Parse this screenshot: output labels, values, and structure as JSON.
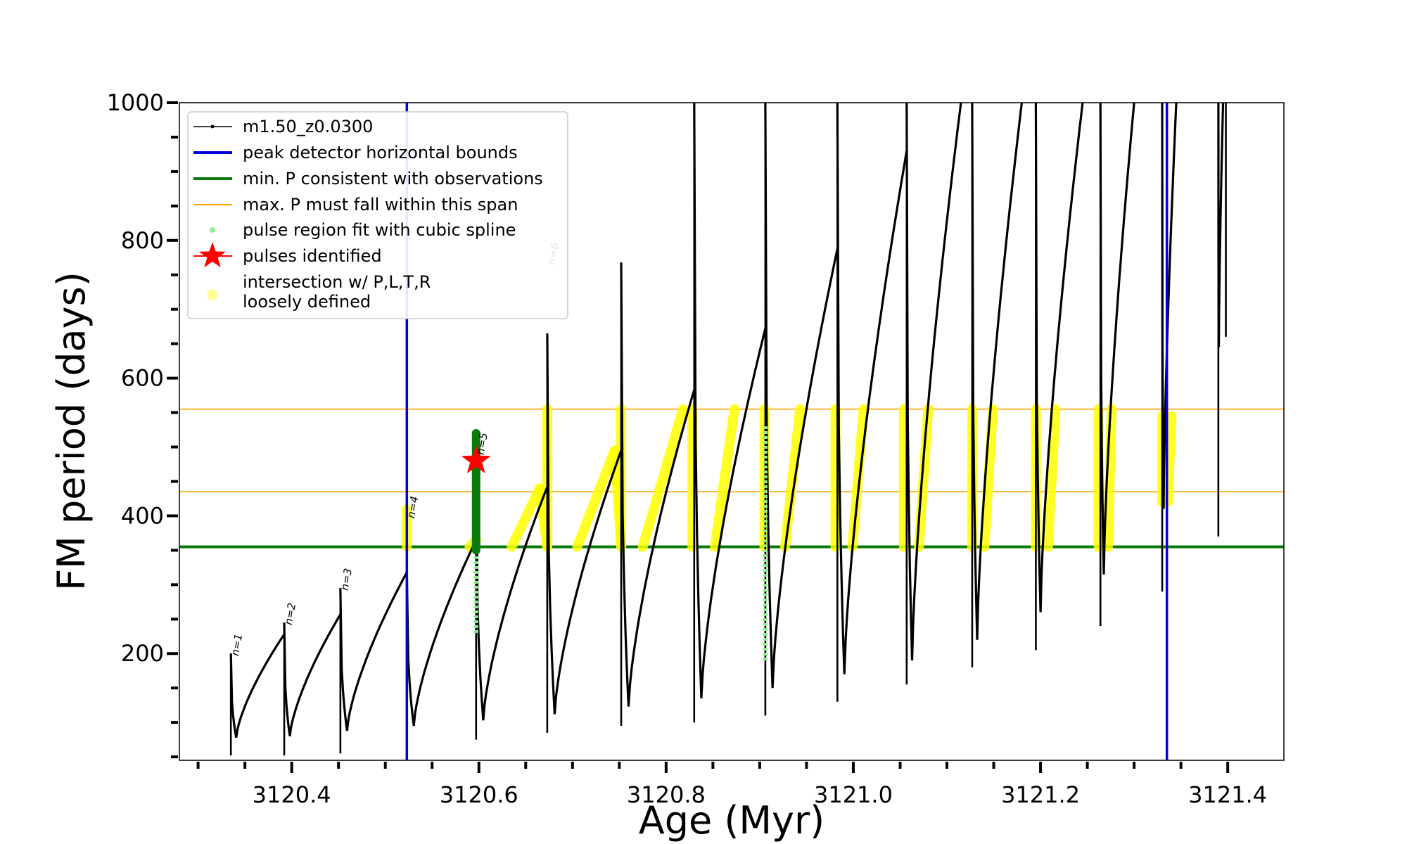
{
  "chart_data": {
    "type": "line",
    "xlabel": "Age (Myr)",
    "ylabel": "FM period (days)",
    "xlim": [
      3120.28,
      3121.46
    ],
    "ylim": [
      45,
      1000
    ],
    "x_ticks": [
      {
        "value": 3120.4,
        "label": "3120.4"
      },
      {
        "value": 3120.6,
        "label": "3120.6"
      },
      {
        "value": 3120.8,
        "label": "3120.8"
      },
      {
        "value": 3121.0,
        "label": "3121.0"
      },
      {
        "value": 3121.2,
        "label": "3121.2"
      },
      {
        "value": 3121.4,
        "label": "3121.4"
      }
    ],
    "y_ticks": [
      {
        "value": 200,
        "label": "200"
      },
      {
        "value": 400,
        "label": "400"
      },
      {
        "value": 600,
        "label": "600"
      },
      {
        "value": 800,
        "label": "800"
      },
      {
        "value": 1000,
        "label": "1000"
      }
    ],
    "grid": false,
    "legend_position": "top-left",
    "legend": [
      {
        "label": "m1.50_z0.0300",
        "marker": "line-dot",
        "color": "#000000"
      },
      {
        "label": "peak detector horizontal bounds",
        "marker": "line",
        "color": "#0000dd"
      },
      {
        "label": "min. P consistent with observations",
        "marker": "line",
        "color": "#0a7a0a"
      },
      {
        "label": "max. P must fall within this span",
        "marker": "line",
        "color": "#ffa500"
      },
      {
        "label": "pulse region fit with cubic spline",
        "marker": "dot",
        "color": "#90ee90"
      },
      {
        "label": "pulses identified",
        "marker": "star",
        "color": "#ff0000"
      },
      {
        "label": "intersection w/ P,L,T,R",
        "label2": "loosely defined",
        "marker": "dot",
        "color": "#ffff99"
      }
    ],
    "series": [
      {
        "name": "m1.50_z0.0300",
        "color": "#000000",
        "pulses": [
          {
            "t0": 3120.335,
            "spike": 200,
            "dip": 78,
            "t_end": 3120.392,
            "peak": 228
          },
          {
            "t0": 3120.392,
            "spike": 245,
            "dip": 80,
            "t_end": 3120.452,
            "peak": 257
          },
          {
            "t0": 3120.452,
            "spike": 295,
            "dip": 88,
            "t_end": 3120.523,
            "peak": 318
          },
          {
            "t0": 3120.523,
            "spike": 320,
            "dip": 95,
            "t_end": 3120.597,
            "peak": 365
          },
          {
            "t0": 3120.597,
            "spike": 490,
            "dip": 103,
            "t_end": 3120.673,
            "peak": 442
          },
          {
            "t0": 3120.673,
            "spike": 665,
            "dip": 112,
            "t_end": 3120.752,
            "peak": 495
          },
          {
            "t0": 3120.752,
            "spike": 768,
            "dip": 123,
            "t_end": 3120.83,
            "peak": 583
          },
          {
            "t0": 3120.83,
            "spike": 1000,
            "dip": 135,
            "t_end": 3120.906,
            "peak": 672
          },
          {
            "t0": 3120.906,
            "spike": 1000,
            "dip": 150,
            "t_end": 3120.983,
            "peak": 788
          },
          {
            "t0": 3120.983,
            "spike": 1000,
            "dip": 170,
            "t_end": 3121.057,
            "peak": 930
          },
          {
            "t0": 3121.057,
            "spike": 1000,
            "dip": 190,
            "t_end": 3121.115,
            "peak": 1000
          },
          {
            "t0": 3121.127,
            "spike": 1000,
            "dip": 220,
            "t_end": 3121.18,
            "peak": 1000
          },
          {
            "t0": 3121.195,
            "spike": 1000,
            "dip": 260,
            "t_end": 3121.245,
            "peak": 1000
          },
          {
            "t0": 3121.264,
            "spike": 1000,
            "dip": 315,
            "t_end": 3121.3,
            "peak": 1000
          },
          {
            "t0": 3121.33,
            "spike": 1000,
            "dip": 410,
            "t_end": 3121.345,
            "peak": 1000
          },
          {
            "t0": 3121.39,
            "spike": 1000,
            "dip": 645,
            "t_end": 3121.395,
            "peak": 1000
          }
        ],
        "spikes": [
          {
            "x": 3120.335,
            "y_min": 52,
            "y_max": 200
          },
          {
            "x": 3120.392,
            "y_min": 52,
            "y_max": 245
          },
          {
            "x": 3120.452,
            "y_min": 55,
            "y_max": 295
          },
          {
            "x": 3120.523,
            "y_min": 60,
            "y_max": 320
          },
          {
            "x": 3120.597,
            "y_min": 75,
            "y_max": 490
          },
          {
            "x": 3120.673,
            "y_min": 85,
            "y_max": 665
          },
          {
            "x": 3120.752,
            "y_min": 95,
            "y_max": 768
          },
          {
            "x": 3120.83,
            "y_min": 100,
            "y_max": 1000
          },
          {
            "x": 3120.906,
            "y_min": 110,
            "y_max": 1000
          },
          {
            "x": 3120.983,
            "y_min": 130,
            "y_max": 1000
          },
          {
            "x": 3121.057,
            "y_min": 155,
            "y_max": 1000
          },
          {
            "x": 3121.127,
            "y_min": 180,
            "y_max": 1000
          },
          {
            "x": 3121.195,
            "y_min": 205,
            "y_max": 1000
          },
          {
            "x": 3121.264,
            "y_min": 240,
            "y_max": 1000
          },
          {
            "x": 3121.33,
            "y_min": 290,
            "y_max": 1000
          },
          {
            "x": 3121.39,
            "y_min": 370,
            "y_max": 1000
          },
          {
            "x": 3121.398,
            "y_min": 660,
            "y_max": 1000
          }
        ]
      }
    ],
    "peak_detector_bounds_x": [
      3120.523,
      3121.335
    ],
    "min_period": 355,
    "max_period_span": [
      435,
      555
    ],
    "pulse_region_spline": [
      {
        "x": 3120.597,
        "y_min": 230,
        "y_max": 480
      },
      {
        "x": 3120.906,
        "y_min": 190,
        "y_max": 530
      }
    ],
    "pulse_identified": {
      "x": 3120.597,
      "y": 480
    },
    "min_period_marks": [
      {
        "x": 3120.597,
        "y_min": 350,
        "y_max": 520
      }
    ],
    "intersection_segments": [
      {
        "x0": 3120.523,
        "x1": 3120.523,
        "y0": 355,
        "y1": 410
      },
      {
        "x0": 3120.59,
        "x1": 3120.597,
        "y0": 355,
        "y1": 365
      },
      {
        "x0": 3120.635,
        "x1": 3120.665,
        "y0": 355,
        "y1": 440
      },
      {
        "x0": 3120.665,
        "x1": 3120.673,
        "y0": 440,
        "y1": 355
      },
      {
        "x0": 3120.673,
        "x1": 3120.673,
        "y0": 355,
        "y1": 555
      },
      {
        "x0": 3120.705,
        "x1": 3120.745,
        "y0": 355,
        "y1": 495
      },
      {
        "x0": 3120.745,
        "x1": 3120.752,
        "y0": 495,
        "y1": 355
      },
      {
        "x0": 3120.752,
        "x1": 3120.752,
        "y0": 355,
        "y1": 555
      },
      {
        "x0": 3120.775,
        "x1": 3120.818,
        "y0": 355,
        "y1": 555
      },
      {
        "x0": 3120.828,
        "x1": 3120.828,
        "y0": 355,
        "y1": 555
      },
      {
        "x0": 3120.852,
        "x1": 3120.873,
        "y0": 355,
        "y1": 555
      },
      {
        "x0": 3120.905,
        "x1": 3120.905,
        "y0": 355,
        "y1": 555
      },
      {
        "x0": 3120.927,
        "x1": 3120.943,
        "y0": 355,
        "y1": 555
      },
      {
        "x0": 3120.981,
        "x1": 3120.981,
        "y0": 355,
        "y1": 555
      },
      {
        "x0": 3120.999,
        "x1": 3121.011,
        "y0": 355,
        "y1": 555
      },
      {
        "x0": 3121.054,
        "x1": 3121.054,
        "y0": 355,
        "y1": 555
      },
      {
        "x0": 3121.07,
        "x1": 3121.08,
        "y0": 355,
        "y1": 555
      },
      {
        "x0": 3121.127,
        "x1": 3121.127,
        "y0": 355,
        "y1": 555
      },
      {
        "x0": 3121.14,
        "x1": 3121.149,
        "y0": 355,
        "y1": 555
      },
      {
        "x0": 3121.195,
        "x1": 3121.195,
        "y0": 355,
        "y1": 555
      },
      {
        "x0": 3121.208,
        "x1": 3121.216,
        "y0": 355,
        "y1": 555
      },
      {
        "x0": 3121.262,
        "x1": 3121.262,
        "y0": 355,
        "y1": 555
      },
      {
        "x0": 3121.272,
        "x1": 3121.276,
        "y0": 355,
        "y1": 555
      },
      {
        "x0": 3121.33,
        "x1": 3121.33,
        "y0": 420,
        "y1": 545
      },
      {
        "x0": 3121.336,
        "x1": 3121.34,
        "y0": 420,
        "y1": 545
      }
    ],
    "annotations": [
      {
        "text": "n=1",
        "x": 3120.337,
        "y": 200
      },
      {
        "text": "n=2",
        "x": 3120.394,
        "y": 245
      },
      {
        "text": "n=3",
        "x": 3120.454,
        "y": 295
      },
      {
        "text": "n=4",
        "x": 3120.525,
        "y": 400
      },
      {
        "text": "n=5",
        "x": 3120.599,
        "y": 492
      },
      {
        "text": "n=6",
        "x": 3120.675,
        "y": 768
      }
    ]
  }
}
